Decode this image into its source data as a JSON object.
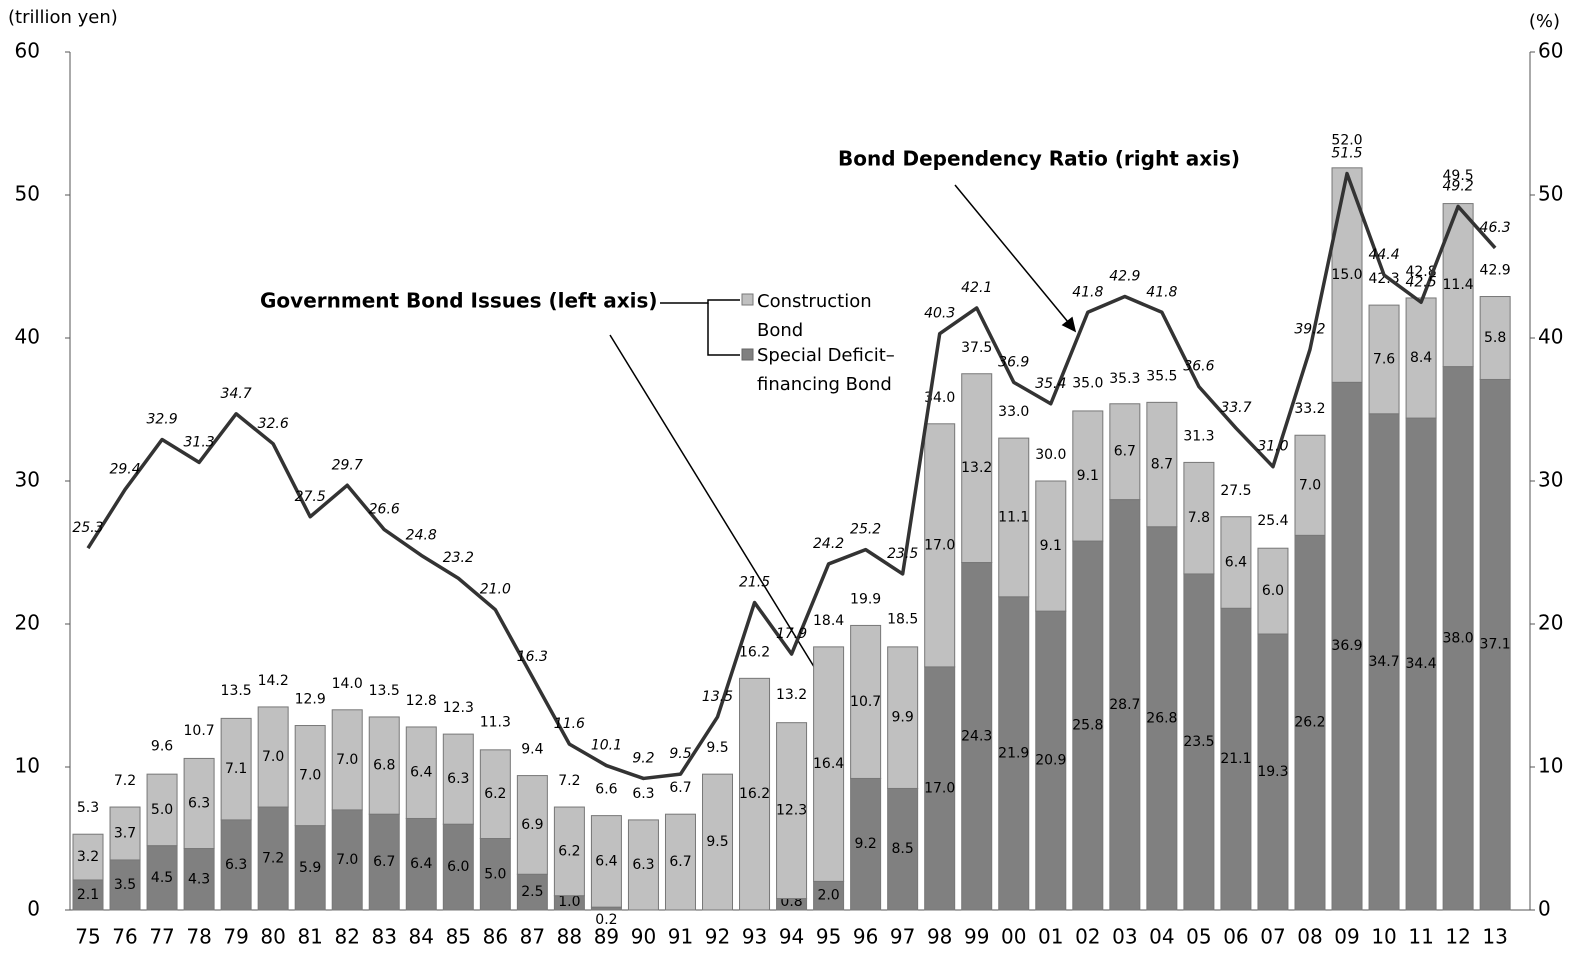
{
  "chart_data": {
    "type": "bar",
    "y_axis_label": "(trillion yen)",
    "y2_axis_label": "(%)",
    "annotations": [
      "Government Bond Issues (left axis)",
      "Bond Dependency Ratio (right axis)"
    ],
    "categories": [
      "75",
      "76",
      "77",
      "78",
      "79",
      "80",
      "81",
      "82",
      "83",
      "84",
      "85",
      "86",
      "87",
      "88",
      "89",
      "90",
      "91",
      "92",
      "93",
      "94",
      "95",
      "96",
      "97",
      "98",
      "99",
      "00",
      "01",
      "02",
      "03",
      "04",
      "05",
      "06",
      "07",
      "08",
      "09",
      "10",
      "11",
      "12",
      "13"
    ],
    "series": [
      {
        "name": "Special Deficit–financing Bond",
        "type": "bar",
        "color": "#808080",
        "values": [
          2.1,
          3.5,
          4.5,
          4.3,
          6.3,
          7.2,
          5.9,
          7.0,
          6.7,
          6.4,
          6.0,
          5.0,
          2.5,
          1.0,
          0.2,
          null,
          null,
          null,
          null,
          0.8,
          2.0,
          9.2,
          8.5,
          17.0,
          24.3,
          21.9,
          20.9,
          25.8,
          28.7,
          26.8,
          23.5,
          21.1,
          19.3,
          26.2,
          36.9,
          34.7,
          34.4,
          38.0,
          37.1
        ],
        "value_labels": [
          "2.1",
          "3.5",
          "4.5",
          "4.3",
          "6.3",
          "7.2",
          "5.9",
          "7.0",
          "6.7",
          "6.4",
          "6.0",
          "5.0",
          "2.5",
          "1.0",
          "0.2",
          null,
          null,
          null,
          null,
          "0.8",
          "2.0",
          "9.2",
          "8.5",
          "17.0",
          "24.3",
          "21.9",
          "20.9",
          "25.8",
          "28.7",
          "26.8",
          "23.5",
          "21.1",
          "19.3",
          "26.2",
          "36.9",
          "34.7",
          "34.4",
          "38.0",
          "37.1"
        ]
      },
      {
        "name": "Construction Bond",
        "type": "bar",
        "color": "#c0c0c0",
        "values": [
          3.2,
          3.7,
          5.0,
          6.3,
          7.1,
          7.0,
          7.0,
          7.0,
          6.8,
          6.4,
          6.3,
          6.2,
          6.9,
          6.2,
          6.4,
          6.3,
          6.7,
          9.5,
          16.2,
          12.3,
          16.4,
          10.7,
          9.9,
          17.0,
          13.2,
          11.1,
          9.1,
          9.1,
          6.7,
          8.7,
          7.8,
          6.4,
          6.0,
          7.0,
          15.0,
          7.6,
          8.4,
          11.4,
          5.8
        ],
        "value_labels": [
          "3.2",
          "3.7",
          "5.0",
          "6.3",
          "7.1",
          "7.0",
          "7.0",
          "7.0",
          "6.8",
          "6.4",
          "6.3",
          "6.2",
          "6.9",
          "6.2",
          "6.4",
          "6.3",
          "6.7",
          "9.5",
          "16.2",
          "12.3",
          "16.4",
          "10.7",
          "9.9",
          "17.0",
          "13.2",
          "11.1",
          "9.1",
          "9.1",
          "6.7",
          "8.7",
          "7.8",
          "6.4",
          "6.0",
          "7.0",
          "15.0",
          "7.6",
          "8.4",
          "11.4",
          "5.8"
        ]
      },
      {
        "name": "Bond Dependency Ratio",
        "type": "line",
        "axis": "y2",
        "color": "#333333",
        "values": [
          25.3,
          29.4,
          32.9,
          31.3,
          34.7,
          32.6,
          27.5,
          29.7,
          26.6,
          24.8,
          23.2,
          21.0,
          16.3,
          11.6,
          10.1,
          9.2,
          9.5,
          13.5,
          21.5,
          17.9,
          24.2,
          25.2,
          23.5,
          40.3,
          42.1,
          36.9,
          35.4,
          41.8,
          42.9,
          41.8,
          36.6,
          33.7,
          31.0,
          39.2,
          51.5,
          44.4,
          42.5,
          49.2,
          46.3
        ],
        "value_labels": [
          "25.3",
          "29.4",
          "32.9",
          "31.3",
          "34.7",
          "32.6",
          "27.5",
          "29.7",
          "26.6",
          "24.8",
          "23.2",
          "21.0",
          "16.3",
          "11.6",
          "10.1",
          "9.2",
          "9.5",
          "13.5",
          "21.5",
          "17.9",
          "24.2",
          "25.2",
          "23.5",
          "40.3",
          "42.1",
          "36.9",
          "35.4",
          "41.8",
          "42.9",
          "41.8",
          "36.6",
          "33.7",
          "31.0",
          "39.2",
          "51.5",
          "44.4",
          "42.5",
          "49.2",
          "46.3"
        ]
      }
    ],
    "totals": [
      5.3,
      7.2,
      9.6,
      10.7,
      13.5,
      14.2,
      12.9,
      14.0,
      13.5,
      12.8,
      12.3,
      11.3,
      9.4,
      7.2,
      6.6,
      6.3,
      6.7,
      9.5,
      16.2,
      13.2,
      18.4,
      19.9,
      18.5,
      34.0,
      37.5,
      33.0,
      30.0,
      35.0,
      35.3,
      35.5,
      31.3,
      27.5,
      25.4,
      33.2,
      52.0,
      42.3,
      42.8,
      49.5,
      42.9
    ],
    "total_labels": [
      "5.3",
      "7.2",
      "9.6",
      "10.7",
      "13.5",
      "14.2",
      "12.9",
      "14.0",
      "13.5",
      "12.8",
      "12.3",
      "11.3",
      "9.4",
      "7.2",
      "6.6",
      "6.3",
      "6.7",
      "9.5",
      "16.2",
      "13.2",
      "18.4",
      "19.9",
      "18.5",
      "34.0",
      "37.5",
      "33.0",
      "30.0",
      "35.0",
      "35.3",
      "35.5",
      "31.3",
      "27.5",
      "25.4",
      "33.2",
      "52.0",
      "42.3",
      "42.8",
      "49.5",
      "42.9"
    ],
    "ylim": [
      0,
      60
    ],
    "yticks": [
      0,
      10,
      20,
      30,
      40,
      50,
      60
    ],
    "y2lim": [
      0,
      60
    ],
    "y2ticks": [
      0,
      10,
      20,
      30,
      40,
      50,
      60
    ],
    "grid": false
  }
}
